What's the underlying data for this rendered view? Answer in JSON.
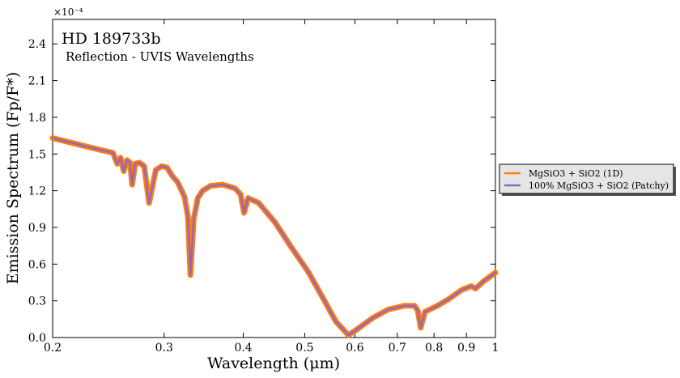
{
  "chart_data": {
    "type": "line",
    "title": "HD 189733b",
    "subtitle": "Reflection - UVIS Wavelengths",
    "x_label": "Wavelength (μm)",
    "y_label": "Emission Spectrum (Fp/F*)",
    "y_multiplier": "×10⁻⁴",
    "x_log": true,
    "legend": "outside right",
    "x": [
      0.2,
      0.215,
      0.235,
      0.249,
      0.253,
      0.256,
      0.259,
      0.262,
      0.265,
      0.267,
      0.27,
      0.274,
      0.279,
      0.284,
      0.291,
      0.297,
      0.303,
      0.309,
      0.315,
      0.323,
      0.327,
      0.33,
      0.334,
      0.339,
      0.345,
      0.355,
      0.371,
      0.388,
      0.396,
      0.401,
      0.407,
      0.423,
      0.449,
      0.476,
      0.506,
      0.536,
      0.56,
      0.586,
      0.602,
      0.64,
      0.678,
      0.719,
      0.745,
      0.754,
      0.762,
      0.774,
      0.81,
      0.847,
      0.885,
      0.916,
      0.93,
      0.958,
      1.0
    ],
    "series": [
      {
        "name": "MgSiO3 + SiO2 (1D)",
        "color": "#ff7f0e",
        "width": 7,
        "values": [
          1.63,
          1.59,
          1.54,
          1.51,
          1.42,
          1.47,
          1.36,
          1.45,
          1.43,
          1.25,
          1.42,
          1.43,
          1.4,
          1.1,
          1.37,
          1.4,
          1.39,
          1.32,
          1.27,
          1.15,
          0.99,
          0.51,
          0.97,
          1.14,
          1.2,
          1.24,
          1.25,
          1.22,
          1.17,
          1.02,
          1.14,
          1.1,
          0.94,
          0.74,
          0.54,
          0.31,
          0.13,
          0.02,
          0.06,
          0.16,
          0.23,
          0.26,
          0.26,
          0.22,
          0.08,
          0.21,
          0.26,
          0.32,
          0.39,
          0.42,
          0.4,
          0.46,
          0.53
        ]
      },
      {
        "name": "100% MgSiO3 + SiO2 (Patchy)",
        "color": "#9467bd",
        "width": 2.5,
        "values": [
          1.63,
          1.59,
          1.54,
          1.51,
          1.42,
          1.47,
          1.36,
          1.45,
          1.43,
          1.25,
          1.42,
          1.43,
          1.4,
          1.1,
          1.37,
          1.4,
          1.39,
          1.32,
          1.27,
          1.15,
          0.99,
          0.51,
          0.97,
          1.14,
          1.2,
          1.24,
          1.25,
          1.22,
          1.17,
          1.02,
          1.14,
          1.1,
          0.94,
          0.74,
          0.54,
          0.31,
          0.13,
          0.02,
          0.06,
          0.16,
          0.23,
          0.26,
          0.26,
          0.22,
          0.08,
          0.21,
          0.26,
          0.32,
          0.39,
          0.42,
          0.4,
          0.46,
          0.53
        ]
      }
    ],
    "xlim": [
      0.2,
      1
    ],
    "xticks": [
      0.2,
      0.3,
      0.4,
      0.5,
      0.6,
      0.7,
      0.8,
      0.9,
      1
    ],
    "ylim": [
      0,
      2.6
    ],
    "yticks": [
      {
        "value": 0,
        "label": "0.0"
      },
      0.3,
      0.6,
      0.9,
      1.2,
      1.5,
      1.8,
      2.1,
      2.4
    ]
  }
}
